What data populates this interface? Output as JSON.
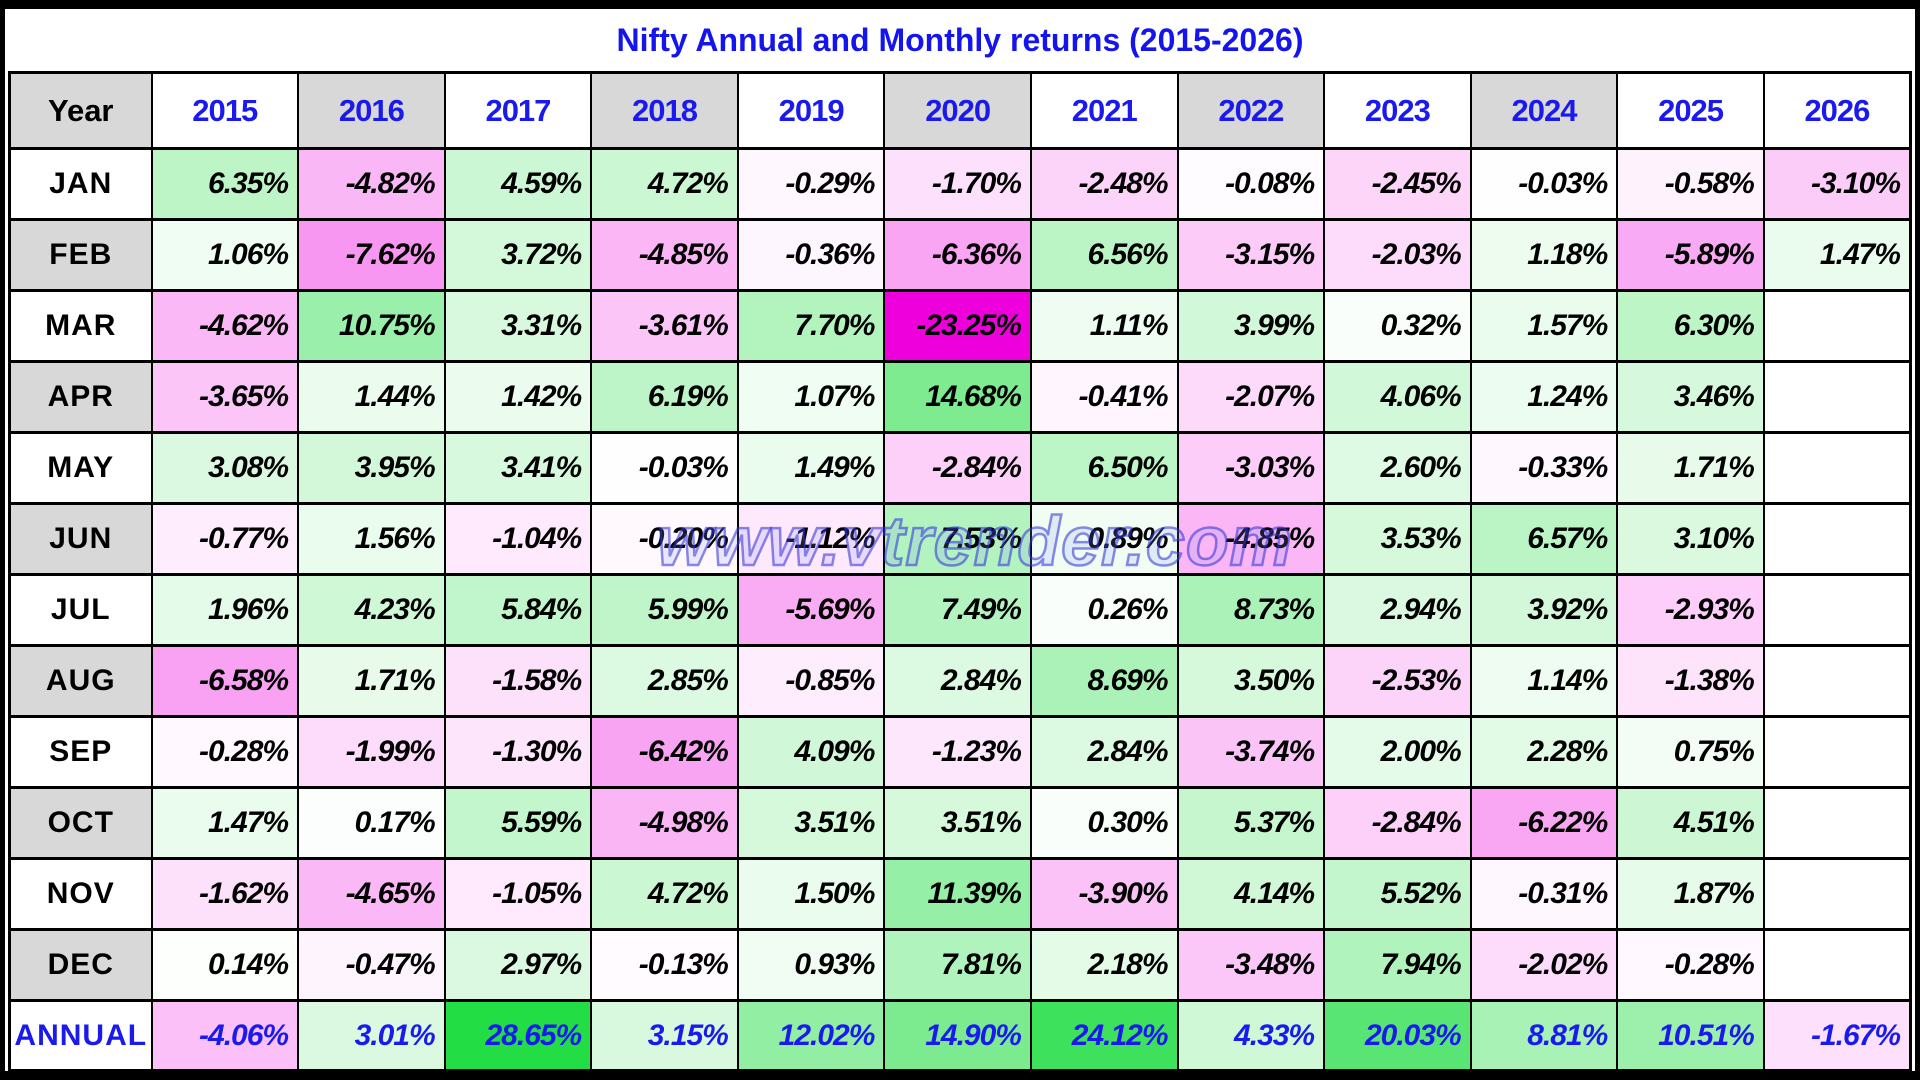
{
  "title": "Nifty Annual and Monthly returns (2015-2026)",
  "watermark": {
    "text": "www.vtrender.com"
  },
  "table": {
    "corner_label": "Year",
    "annual_label": "ANNUAL"
  },
  "chart_data": {
    "type": "heatmap",
    "title": "Nifty Annual and Monthly returns (2015-2026)",
    "unit": "percent",
    "value_format": "0.00%",
    "columns": [
      "2015",
      "2016",
      "2017",
      "2018",
      "2019",
      "2020",
      "2021",
      "2022",
      "2023",
      "2024",
      "2025",
      "2026"
    ],
    "rows": [
      "JAN",
      "FEB",
      "MAR",
      "APR",
      "MAY",
      "JUN",
      "JUL",
      "AUG",
      "SEP",
      "OCT",
      "NOV",
      "DEC",
      "ANNUAL"
    ],
    "values": [
      [
        6.35,
        -4.82,
        4.59,
        4.72,
        -0.29,
        -1.7,
        -2.48,
        -0.08,
        -2.45,
        -0.03,
        -0.58,
        -3.1
      ],
      [
        1.06,
        -7.62,
        3.72,
        -4.85,
        -0.36,
        -6.36,
        6.56,
        -3.15,
        -2.03,
        1.18,
        -5.89,
        1.47
      ],
      [
        -4.62,
        10.75,
        3.31,
        -3.61,
        7.7,
        -23.25,
        1.11,
        3.99,
        0.32,
        1.57,
        6.3,
        null
      ],
      [
        -3.65,
        1.44,
        1.42,
        6.19,
        1.07,
        14.68,
        -0.41,
        -2.07,
        4.06,
        1.24,
        3.46,
        null
      ],
      [
        3.08,
        3.95,
        3.41,
        -0.03,
        1.49,
        -2.84,
        6.5,
        -3.03,
        2.6,
        -0.33,
        1.71,
        null
      ],
      [
        -0.77,
        1.56,
        -1.04,
        -0.2,
        -1.12,
        7.53,
        0.89,
        -4.85,
        3.53,
        6.57,
        3.1,
        null
      ],
      [
        1.96,
        4.23,
        5.84,
        5.99,
        -5.69,
        7.49,
        0.26,
        8.73,
        2.94,
        3.92,
        -2.93,
        null
      ],
      [
        -6.58,
        1.71,
        -1.58,
        2.85,
        -0.85,
        2.84,
        8.69,
        3.5,
        -2.53,
        1.14,
        -1.38,
        null
      ],
      [
        -0.28,
        -1.99,
        -1.3,
        -6.42,
        4.09,
        -1.23,
        2.84,
        -3.74,
        2.0,
        2.28,
        0.75,
        null
      ],
      [
        1.47,
        0.17,
        5.59,
        -4.98,
        3.51,
        3.51,
        0.3,
        5.37,
        -2.84,
        -6.22,
        4.51,
        null
      ],
      [
        -1.62,
        -4.65,
        -1.05,
        4.72,
        1.5,
        11.39,
        -3.9,
        4.14,
        5.52,
        -0.31,
        1.87,
        null
      ],
      [
        0.14,
        -0.47,
        2.97,
        -0.13,
        0.93,
        7.81,
        2.18,
        -3.48,
        7.94,
        -2.02,
        -0.28,
        null
      ],
      [
        -4.06,
        3.01,
        28.65,
        3.15,
        12.02,
        14.9,
        24.12,
        4.33,
        20.03,
        8.81,
        10.51,
        -1.67
      ]
    ],
    "color_scale": {
      "zero_color": "#FFFFFF",
      "positive_max_color": "#22DD44",
      "negative_max_color": "#EE00DD",
      "positive_max": 28.65,
      "negative_min": -23.25
    },
    "legend_position": "none",
    "grid": true
  },
  "styles": {
    "title_blue": "#1414EE",
    "text_blue": "#1A1AEE",
    "header_gray": "#D8D8D8",
    "grid_color": "#000000",
    "frame_color": "#000000"
  }
}
